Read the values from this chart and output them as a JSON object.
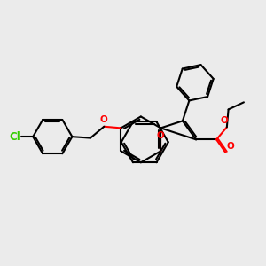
{
  "bg_color": "#ebebeb",
  "bond_color": "#000000",
  "oxygen_color": "#ff0000",
  "chlorine_color": "#33cc00",
  "line_width": 1.5,
  "figsize": [
    3.0,
    3.0
  ],
  "dpi": 100,
  "xlim": [
    0,
    10
  ],
  "ylim": [
    0,
    10
  ]
}
